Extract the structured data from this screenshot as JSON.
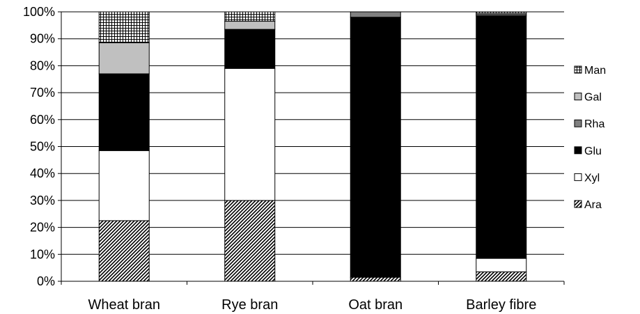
{
  "chart_data": {
    "type": "bar",
    "stacked": true,
    "percent": true,
    "categories": [
      "Wheat bran",
      "Rye bran",
      "Oat bran",
      "Barley fibre"
    ],
    "series": [
      {
        "name": "Ara",
        "values": [
          22.5,
          30.0,
          1.5,
          3.5
        ],
        "pattern": "diagonal-hatch",
        "color": "#404040"
      },
      {
        "name": "Xyl",
        "values": [
          26.0,
          49.0,
          0.0,
          5.0
        ],
        "pattern": "solid",
        "color": "#ffffff"
      },
      {
        "name": "Glu",
        "values": [
          28.5,
          14.5,
          96.5,
          90.0
        ],
        "pattern": "solid",
        "color": "#000000"
      },
      {
        "name": "Rha",
        "values": [
          0.0,
          0.0,
          2.0,
          0.5
        ],
        "pattern": "solid",
        "color": "#808080"
      },
      {
        "name": "Gal",
        "values": [
          11.5,
          3.0,
          0.0,
          0.5
        ],
        "pattern": "solid",
        "color": "#c0c0c0"
      },
      {
        "name": "Man",
        "values": [
          11.5,
          3.5,
          0.0,
          0.5
        ],
        "pattern": "grid",
        "color": "#ffffff"
      }
    ],
    "yticks": [
      "0%",
      "10%",
      "20%",
      "30%",
      "40%",
      "50%",
      "60%",
      "70%",
      "80%",
      "90%",
      "100%"
    ],
    "ylim": [
      0,
      100
    ],
    "grid": true,
    "legend": "right",
    "xlabel": "",
    "ylabel": "",
    "title": ""
  }
}
